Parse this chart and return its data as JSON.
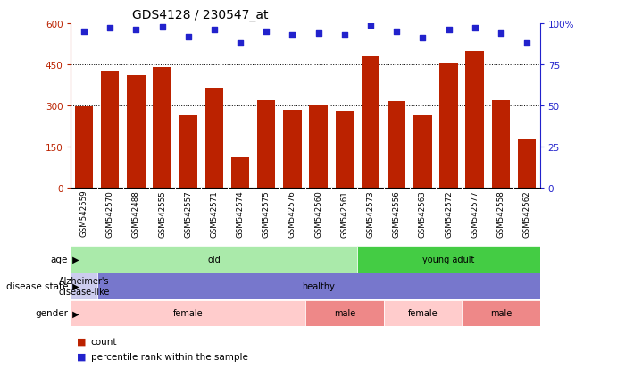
{
  "title": "GDS4128 / 230547_at",
  "samples": [
    "GSM542559",
    "GSM542570",
    "GSM542488",
    "GSM542555",
    "GSM542557",
    "GSM542571",
    "GSM542574",
    "GSM542575",
    "GSM542576",
    "GSM542560",
    "GSM542561",
    "GSM542573",
    "GSM542556",
    "GSM542563",
    "GSM542572",
    "GSM542577",
    "GSM542558",
    "GSM542562"
  ],
  "counts": [
    295,
    425,
    410,
    440,
    265,
    365,
    110,
    320,
    285,
    300,
    280,
    480,
    315,
    265,
    455,
    500,
    320,
    175
  ],
  "percentile_ranks": [
    95,
    97,
    96,
    98,
    92,
    96,
    88,
    95,
    93,
    94,
    93,
    99,
    95,
    91,
    96,
    97,
    94,
    88
  ],
  "ylim_left": [
    0,
    600
  ],
  "ylim_right": [
    0,
    100
  ],
  "yticks_left": [
    0,
    150,
    300,
    450,
    600
  ],
  "yticks_right": [
    0,
    25,
    50,
    75,
    100
  ],
  "bar_color": "#BB2200",
  "dot_color": "#2222CC",
  "plot_bg": "#FFFFFF",
  "xtick_bg": "#D4D4D4",
  "age_groups": [
    {
      "label": "old",
      "start": 0,
      "end": 11,
      "color": "#AAEAAA"
    },
    {
      "label": "young adult",
      "start": 11,
      "end": 18,
      "color": "#44CC44"
    }
  ],
  "disease_groups": [
    {
      "label": "Alzheimer's\ndisease-like",
      "start": 0,
      "end": 1,
      "color": "#CCCCEE"
    },
    {
      "label": "healthy",
      "start": 1,
      "end": 18,
      "color": "#7777CC"
    }
  ],
  "gender_groups": [
    {
      "label": "female",
      "start": 0,
      "end": 9,
      "color": "#FFCCCC"
    },
    {
      "label": "male",
      "start": 9,
      "end": 12,
      "color": "#EE8888"
    },
    {
      "label": "female",
      "start": 12,
      "end": 15,
      "color": "#FFCCCC"
    },
    {
      "label": "male",
      "start": 15,
      "end": 18,
      "color": "#EE8888"
    }
  ],
  "legend_items": [
    {
      "label": "count",
      "color": "#BB2200"
    },
    {
      "label": "percentile rank within the sample",
      "color": "#2222CC"
    }
  ]
}
